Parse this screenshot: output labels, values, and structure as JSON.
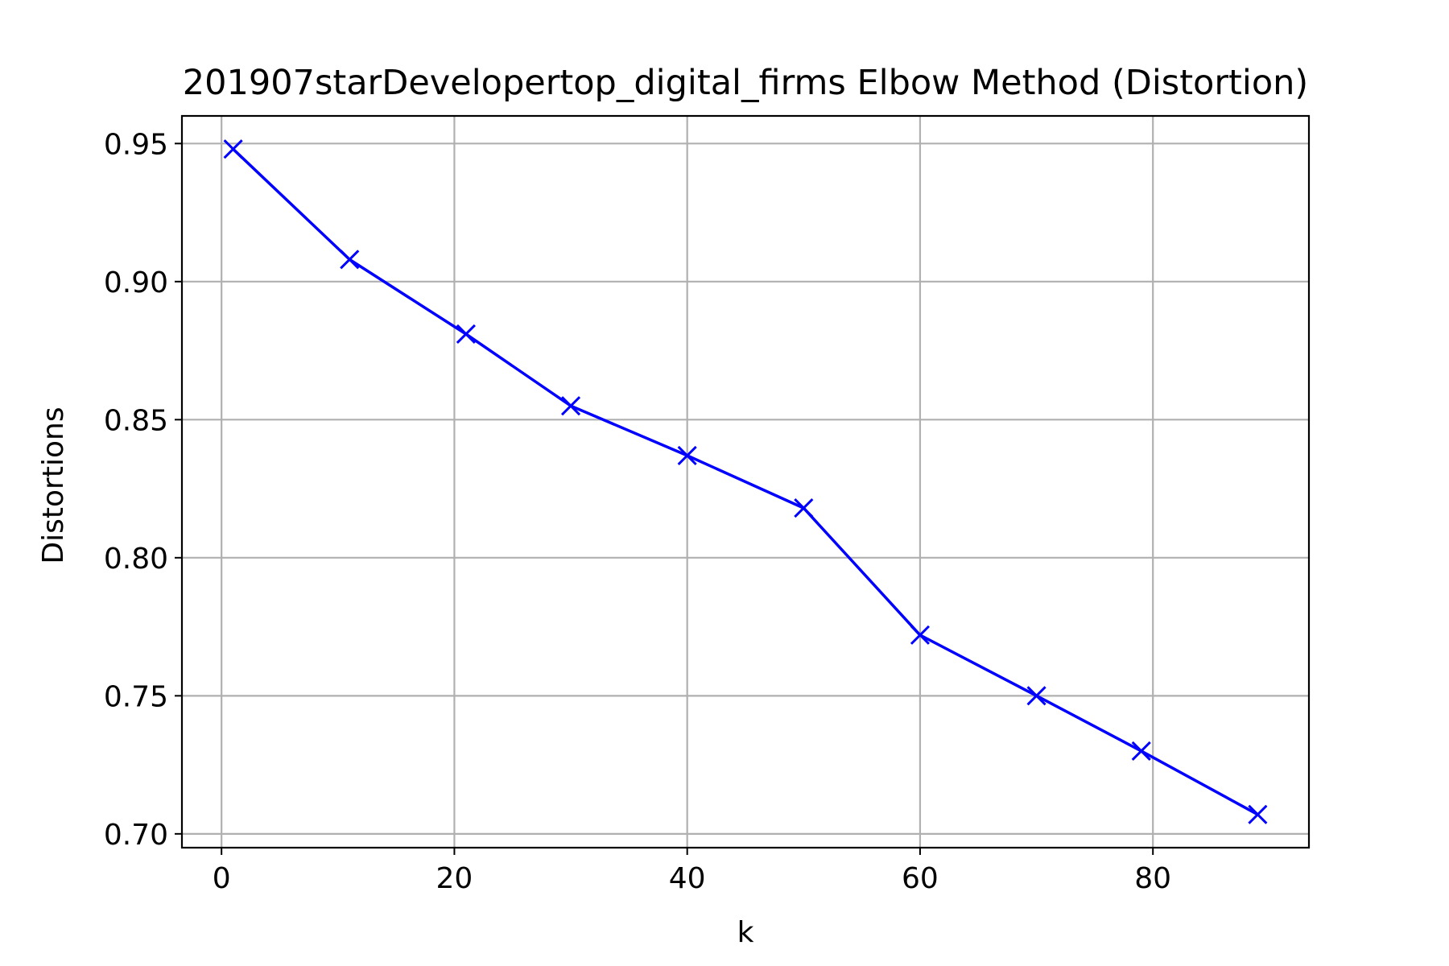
{
  "chart_data": {
    "type": "line",
    "title": "201907starDevelopertop_digital_firms Elbow Method (Distortion)",
    "xlabel": "k",
    "ylabel": "Distortions",
    "xlim": [
      -3.4,
      93.4
    ],
    "ylim": [
      0.695,
      0.96
    ],
    "x_ticks": [
      0,
      20,
      40,
      60,
      80
    ],
    "x_tick_labels": [
      "0",
      "20",
      "40",
      "60",
      "80"
    ],
    "y_ticks": [
      0.7,
      0.75,
      0.8,
      0.85,
      0.9,
      0.95
    ],
    "y_tick_labels": [
      "0.70",
      "0.75",
      "0.80",
      "0.85",
      "0.90",
      "0.95"
    ],
    "grid": true,
    "series": [
      {
        "marker": "x",
        "color": "#0000ff",
        "x": [
          1,
          11,
          21,
          30,
          40,
          50,
          60,
          70,
          79,
          89
        ],
        "y": [
          0.948,
          0.908,
          0.881,
          0.855,
          0.837,
          0.818,
          0.772,
          0.75,
          0.73,
          0.707
        ]
      }
    ]
  }
}
